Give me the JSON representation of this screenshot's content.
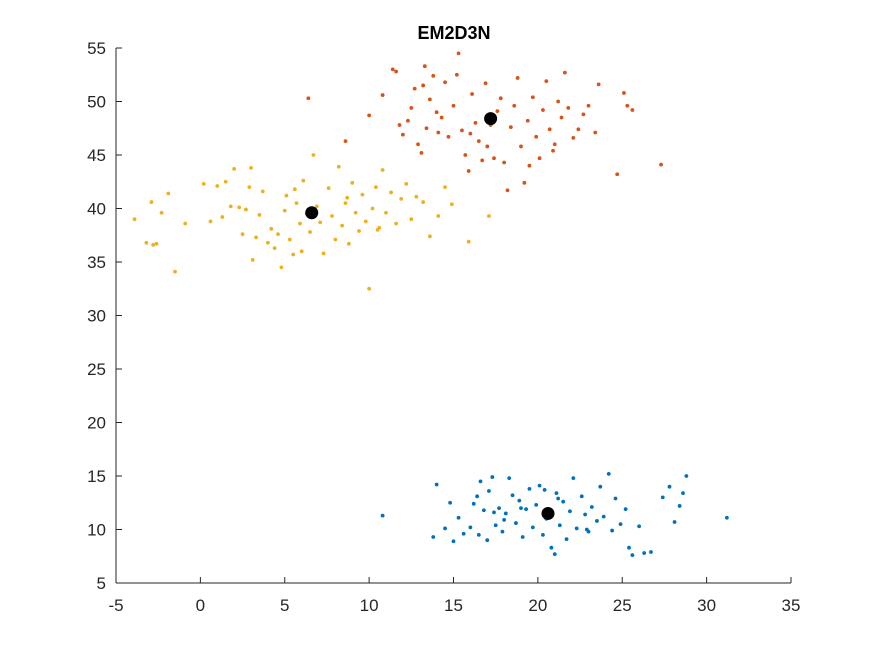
{
  "chart_data": {
    "type": "scatter",
    "title": "EM2D3N",
    "xlabel": "",
    "ylabel": "",
    "xlim": [
      -5,
      35
    ],
    "ylim": [
      5,
      55
    ],
    "xticks": [
      "-5",
      "0",
      "5",
      "10",
      "15",
      "20",
      "25",
      "30",
      "35"
    ],
    "yticks": [
      "5",
      "10",
      "15",
      "20",
      "25",
      "30",
      "35",
      "40",
      "45",
      "50",
      "55"
    ],
    "grid": false,
    "legend": "none",
    "series": [
      {
        "color": "#0072BD",
        "points": [
          [
            10.8,
            11.3
          ],
          [
            14.0,
            14.2
          ],
          [
            13.8,
            9.3
          ],
          [
            14.5,
            10.1
          ],
          [
            14.8,
            12.5
          ],
          [
            15.0,
            8.9
          ],
          [
            15.3,
            11.1
          ],
          [
            15.6,
            9.6
          ],
          [
            16.0,
            10.2
          ],
          [
            16.2,
            12.4
          ],
          [
            16.4,
            13.1
          ],
          [
            16.6,
            14.5
          ],
          [
            16.8,
            11.8
          ],
          [
            17.0,
            9.0
          ],
          [
            17.1,
            13.6
          ],
          [
            17.3,
            14.9
          ],
          [
            17.5,
            10.4
          ],
          [
            17.7,
            12.0
          ],
          [
            17.9,
            9.8
          ],
          [
            18.1,
            11.5
          ],
          [
            18.3,
            14.8
          ],
          [
            18.5,
            13.2
          ],
          [
            18.7,
            10.6
          ],
          [
            18.9,
            12.7
          ],
          [
            19.1,
            9.3
          ],
          [
            19.3,
            11.9
          ],
          [
            19.5,
            13.8
          ],
          [
            19.7,
            10.2
          ],
          [
            19.9,
            12.3
          ],
          [
            20.1,
            14.1
          ],
          [
            20.3,
            9.5
          ],
          [
            20.5,
            11.0
          ],
          [
            20.8,
            8.3
          ],
          [
            21.0,
            7.7
          ],
          [
            21.1,
            13.4
          ],
          [
            21.3,
            10.4
          ],
          [
            21.5,
            12.6
          ],
          [
            21.7,
            9.1
          ],
          [
            21.9,
            11.7
          ],
          [
            22.1,
            14.8
          ],
          [
            22.3,
            10.1
          ],
          [
            22.6,
            13.1
          ],
          [
            22.8,
            11.4
          ],
          [
            23.0,
            9.8
          ],
          [
            23.2,
            12.1
          ],
          [
            23.5,
            10.8
          ],
          [
            23.7,
            14.0
          ],
          [
            23.9,
            11.2
          ],
          [
            24.2,
            15.2
          ],
          [
            24.4,
            9.9
          ],
          [
            24.6,
            12.9
          ],
          [
            24.9,
            10.5
          ],
          [
            25.2,
            11.9
          ],
          [
            25.4,
            8.3
          ],
          [
            25.6,
            7.6
          ],
          [
            26.0,
            10.3
          ],
          [
            26.3,
            7.8
          ],
          [
            26.7,
            7.9
          ],
          [
            27.4,
            13.0
          ],
          [
            27.8,
            14.0
          ],
          [
            28.1,
            10.7
          ],
          [
            28.4,
            12.2
          ],
          [
            28.6,
            13.4
          ],
          [
            28.8,
            15.0
          ],
          [
            31.2,
            11.1
          ],
          [
            16.5,
            9.5
          ],
          [
            18.0,
            10.9
          ],
          [
            19.0,
            12.0
          ],
          [
            21.2,
            12.9
          ],
          [
            22.9,
            10.0
          ],
          [
            17.4,
            11.6
          ],
          [
            20.4,
            13.7
          ]
        ]
      },
      {
        "color": "#D95319",
        "points": [
          [
            6.4,
            50.3
          ],
          [
            8.6,
            46.3
          ],
          [
            10.0,
            48.7
          ],
          [
            10.8,
            50.6
          ],
          [
            11.4,
            53.0
          ],
          [
            11.6,
            52.8
          ],
          [
            11.8,
            47.8
          ],
          [
            12.0,
            46.9
          ],
          [
            12.3,
            48.2
          ],
          [
            12.5,
            49.4
          ],
          [
            12.7,
            51.2
          ],
          [
            12.9,
            46.0
          ],
          [
            13.1,
            45.2
          ],
          [
            13.3,
            53.3
          ],
          [
            13.4,
            47.5
          ],
          [
            13.6,
            50.2
          ],
          [
            13.8,
            52.4
          ],
          [
            14.0,
            49.0
          ],
          [
            14.1,
            47.1
          ],
          [
            14.3,
            48.5
          ],
          [
            14.5,
            51.8
          ],
          [
            14.7,
            46.7
          ],
          [
            15.0,
            49.6
          ],
          [
            15.2,
            52.5
          ],
          [
            15.3,
            54.5
          ],
          [
            15.5,
            47.3
          ],
          [
            15.7,
            45.0
          ],
          [
            15.9,
            43.5
          ],
          [
            16.1,
            50.7
          ],
          [
            16.3,
            48.0
          ],
          [
            16.5,
            46.3
          ],
          [
            16.7,
            44.5
          ],
          [
            16.9,
            51.7
          ],
          [
            17.2,
            47.8
          ],
          [
            17.4,
            44.7
          ],
          [
            17.6,
            49.1
          ],
          [
            17.8,
            50.3
          ],
          [
            18.0,
            44.3
          ],
          [
            18.2,
            41.7
          ],
          [
            18.4,
            47.6
          ],
          [
            18.6,
            49.6
          ],
          [
            18.8,
            52.2
          ],
          [
            19.0,
            45.8
          ],
          [
            19.2,
            42.4
          ],
          [
            19.4,
            48.2
          ],
          [
            19.7,
            50.4
          ],
          [
            19.9,
            46.7
          ],
          [
            20.1,
            44.7
          ],
          [
            20.3,
            49.2
          ],
          [
            20.5,
            51.9
          ],
          [
            20.7,
            47.4
          ],
          [
            20.9,
            45.4
          ],
          [
            21.2,
            50.0
          ],
          [
            21.4,
            48.5
          ],
          [
            21.6,
            52.7
          ],
          [
            21.8,
            49.4
          ],
          [
            22.1,
            46.6
          ],
          [
            22.4,
            47.4
          ],
          [
            22.7,
            48.8
          ],
          [
            23.0,
            49.6
          ],
          [
            23.4,
            47.1
          ],
          [
            23.6,
            51.6
          ],
          [
            24.7,
            43.2
          ],
          [
            25.1,
            50.8
          ],
          [
            25.3,
            49.6
          ],
          [
            25.6,
            49.2
          ],
          [
            27.3,
            44.1
          ],
          [
            16.0,
            47.0
          ],
          [
            19.5,
            44.0
          ],
          [
            21.0,
            46.0
          ],
          [
            13.2,
            51.5
          ],
          [
            17.0,
            45.8
          ]
        ]
      },
      {
        "color": "#EDB120",
        "points": [
          [
            -3.9,
            39.0
          ],
          [
            -3.2,
            36.8
          ],
          [
            -2.9,
            40.6
          ],
          [
            -2.8,
            36.6
          ],
          [
            -2.6,
            36.7
          ],
          [
            -2.3,
            39.6
          ],
          [
            -1.9,
            41.4
          ],
          [
            -1.5,
            34.1
          ],
          [
            -0.9,
            38.6
          ],
          [
            0.2,
            42.3
          ],
          [
            0.6,
            38.8
          ],
          [
            1.0,
            42.1
          ],
          [
            1.3,
            39.2
          ],
          [
            1.5,
            42.5
          ],
          [
            1.8,
            40.2
          ],
          [
            2.0,
            43.7
          ],
          [
            2.3,
            40.1
          ],
          [
            2.5,
            37.6
          ],
          [
            2.7,
            39.9
          ],
          [
            2.9,
            42.0
          ],
          [
            3.1,
            35.2
          ],
          [
            3.3,
            37.3
          ],
          [
            3.5,
            39.4
          ],
          [
            3.7,
            41.6
          ],
          [
            4.0,
            36.8
          ],
          [
            4.2,
            38.1
          ],
          [
            4.4,
            36.3
          ],
          [
            4.6,
            37.6
          ],
          [
            4.8,
            34.5
          ],
          [
            5.0,
            39.8
          ],
          [
            5.1,
            41.2
          ],
          [
            5.3,
            37.1
          ],
          [
            5.5,
            35.7
          ],
          [
            5.7,
            40.5
          ],
          [
            5.9,
            38.6
          ],
          [
            6.1,
            42.6
          ],
          [
            6.3,
            39.5
          ],
          [
            6.5,
            37.8
          ],
          [
            6.7,
            45.0
          ],
          [
            6.9,
            40.2
          ],
          [
            7.1,
            38.7
          ],
          [
            7.3,
            35.8
          ],
          [
            7.6,
            41.9
          ],
          [
            7.8,
            39.3
          ],
          [
            8.0,
            37.1
          ],
          [
            8.2,
            43.9
          ],
          [
            8.4,
            38.4
          ],
          [
            8.6,
            40.5
          ],
          [
            8.8,
            36.7
          ],
          [
            9.0,
            42.4
          ],
          [
            9.2,
            39.6
          ],
          [
            9.4,
            37.9
          ],
          [
            9.6,
            41.3
          ],
          [
            9.8,
            38.8
          ],
          [
            10.0,
            32.5
          ],
          [
            10.2,
            40.0
          ],
          [
            10.4,
            42.0
          ],
          [
            10.6,
            38.2
          ],
          [
            10.8,
            43.6
          ],
          [
            11.0,
            39.6
          ],
          [
            11.3,
            41.5
          ],
          [
            11.6,
            38.6
          ],
          [
            11.9,
            40.9
          ],
          [
            12.2,
            42.3
          ],
          [
            12.5,
            39.0
          ],
          [
            12.8,
            41.1
          ],
          [
            13.2,
            40.6
          ],
          [
            13.6,
            37.4
          ],
          [
            14.1,
            39.3
          ],
          [
            14.5,
            42.0
          ],
          [
            14.9,
            40.4
          ],
          [
            15.9,
            36.9
          ],
          [
            17.1,
            39.3
          ],
          [
            3.0,
            43.8
          ],
          [
            5.6,
            41.8
          ],
          [
            8.7,
            41.0
          ],
          [
            6.0,
            36.0
          ],
          [
            10.5,
            38.0
          ]
        ]
      }
    ],
    "centroids": {
      "color": "#000000",
      "points": [
        [
          20.6,
          11.5
        ],
        [
          17.2,
          48.4
        ],
        [
          6.6,
          39.6
        ]
      ]
    }
  }
}
